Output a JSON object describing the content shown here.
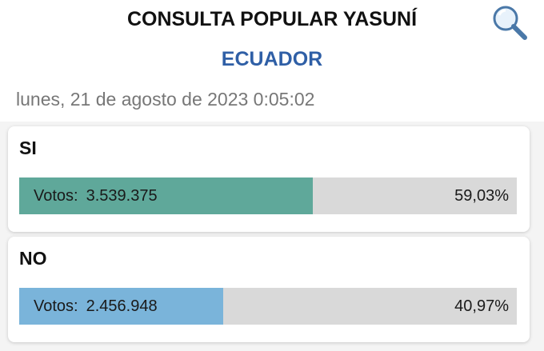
{
  "header": {
    "title": "CONSULTA POPULAR YASUNÍ",
    "subtitle": "ECUADOR",
    "date": "lunes, 21 de agosto de 2023 0:05:02"
  },
  "chart_data": {
    "type": "bar",
    "orientation": "horizontal",
    "categories": [
      "SI",
      "NO"
    ],
    "values": [
      59.03,
      40.97
    ],
    "value_labels": [
      "59,03%",
      "40,97%"
    ],
    "colors": [
      "#5fa89a",
      "#7ab4da"
    ],
    "xlim": [
      0,
      100
    ],
    "votes_label": "Votos:",
    "votes": [
      "3.539.375",
      "2.456.948"
    ]
  }
}
